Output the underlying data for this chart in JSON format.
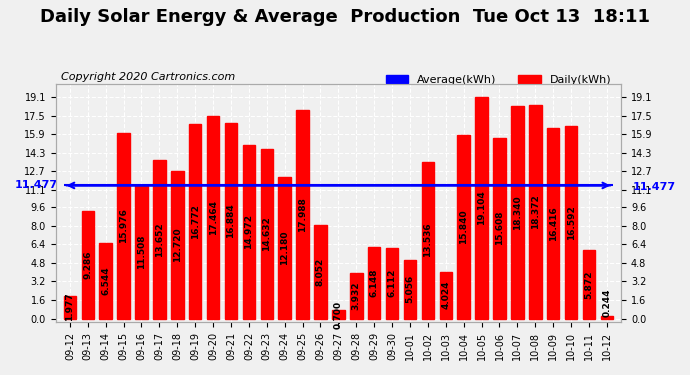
{
  "title": "Daily Solar Energy & Average  Production  Tue Oct 13  18:11",
  "copyright": "Copyright 2020 Cartronics.com",
  "categories": [
    "09-12",
    "09-13",
    "09-14",
    "09-15",
    "09-16",
    "09-17",
    "09-18",
    "09-19",
    "09-20",
    "09-21",
    "09-22",
    "09-23",
    "09-24",
    "09-25",
    "09-26",
    "09-27",
    "09-28",
    "09-29",
    "09-30",
    "10-01",
    "10-02",
    "10-03",
    "10-04",
    "10-05",
    "10-06",
    "10-07",
    "10-08",
    "10-09",
    "10-10",
    "10-11",
    "10-12"
  ],
  "values": [
    1.977,
    9.286,
    6.544,
    15.976,
    11.508,
    13.652,
    12.72,
    16.772,
    17.464,
    16.884,
    14.972,
    14.632,
    12.18,
    17.988,
    8.052,
    0.7,
    3.932,
    6.148,
    6.112,
    5.056,
    13.536,
    4.024,
    15.84,
    19.104,
    15.608,
    18.34,
    18.372,
    16.416,
    16.592,
    5.872,
    0.244
  ],
  "average": 11.477,
  "bar_color": "#ff0000",
  "average_line_color": "#0000ff",
  "background_color": "#f0f0f0",
  "grid_color": "#cccccc",
  "ylabel_left": "",
  "ylabel_right": "",
  "yticks": [
    0.0,
    1.6,
    3.2,
    4.8,
    6.4,
    8.0,
    9.6,
    11.1,
    12.7,
    14.3,
    15.9,
    17.5,
    19.1
  ],
  "legend_average_label": "Average(kWh)",
  "legend_daily_label": "Daily(kWh)",
  "title_fontsize": 13,
  "copyright_fontsize": 8,
  "tick_fontsize": 7,
  "value_fontsize": 6.5,
  "average_label_fontsize": 8,
  "figsize": [
    6.9,
    3.75
  ],
  "dpi": 100
}
